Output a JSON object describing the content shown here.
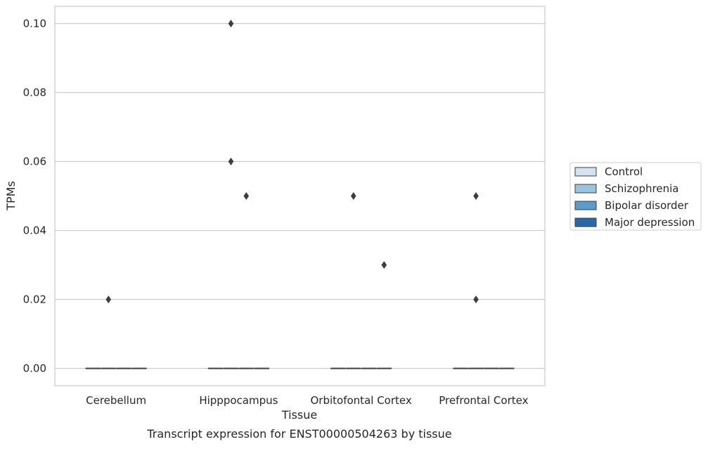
{
  "chart_data": {
    "type": "box",
    "title": "",
    "caption": "Transcript expression for ENST00000504263 by tissue",
    "xlabel": "Tissue",
    "ylabel": "TPMs",
    "ylim": [
      -0.005,
      0.105
    ],
    "yticks": [
      "0.00",
      "0.02",
      "0.04",
      "0.06",
      "0.08",
      "0.10"
    ],
    "ytick_values": [
      0.0,
      0.02,
      0.04,
      0.06,
      0.08,
      0.1
    ],
    "grid": "horizontal",
    "legend_position": "right",
    "categories": [
      "Cerebellum",
      "Hipppocampus",
      "Orbitofontal Cortex",
      "Prefrontal Cortex"
    ],
    "series": [
      {
        "name": "Control",
        "color": "#d4e3f1",
        "boxes": [
          {
            "median": 0.0,
            "q1": 0.0,
            "q3": 0.0,
            "whisker_low": 0.0,
            "whisker_high": 0.0,
            "outliers": []
          },
          {
            "median": 0.0,
            "q1": 0.0,
            "q3": 0.0,
            "whisker_low": 0.0,
            "whisker_high": 0.0,
            "outliers": []
          },
          {
            "median": 0.0,
            "q1": 0.0,
            "q3": 0.0,
            "whisker_low": 0.0,
            "whisker_high": 0.0,
            "outliers": []
          },
          {
            "median": 0.0,
            "q1": 0.0,
            "q3": 0.0,
            "whisker_low": 0.0,
            "whisker_high": 0.0,
            "outliers": []
          }
        ]
      },
      {
        "name": "Schizophrenia",
        "color": "#9ac3dd",
        "boxes": [
          {
            "median": 0.0,
            "q1": 0.0,
            "q3": 0.0,
            "whisker_low": 0.0,
            "whisker_high": 0.0,
            "outliers": [
              0.02
            ]
          },
          {
            "median": 0.0,
            "q1": 0.0,
            "q3": 0.0,
            "whisker_low": 0.0,
            "whisker_high": 0.0,
            "outliers": [
              0.1,
              0.06
            ]
          },
          {
            "median": 0.0,
            "q1": 0.0,
            "q3": 0.0,
            "whisker_low": 0.0,
            "whisker_high": 0.0,
            "outliers": [
              0.05
            ]
          },
          {
            "median": 0.0,
            "q1": 0.0,
            "q3": 0.0,
            "whisker_low": 0.0,
            "whisker_high": 0.0,
            "outliers": [
              0.05,
              0.02
            ]
          }
        ]
      },
      {
        "name": "Bipolar disorder",
        "color": "#5a9ccb",
        "boxes": [
          {
            "median": 0.0,
            "q1": 0.0,
            "q3": 0.0,
            "whisker_low": 0.0,
            "whisker_high": 0.0,
            "outliers": []
          },
          {
            "median": 0.0,
            "q1": 0.0,
            "q3": 0.0,
            "whisker_low": 0.0,
            "whisker_high": 0.0,
            "outliers": [
              0.05
            ]
          },
          {
            "median": 0.0,
            "q1": 0.0,
            "q3": 0.0,
            "whisker_low": 0.0,
            "whisker_high": 0.0,
            "outliers": []
          },
          {
            "median": 0.0,
            "q1": 0.0,
            "q3": 0.0,
            "whisker_low": 0.0,
            "whisker_high": 0.0,
            "outliers": []
          }
        ]
      },
      {
        "name": "Major depression",
        "color": "#2769a8",
        "boxes": [
          {
            "median": 0.0,
            "q1": 0.0,
            "q3": 0.0,
            "whisker_low": 0.0,
            "whisker_high": 0.0,
            "outliers": []
          },
          {
            "median": 0.0,
            "q1": 0.0,
            "q3": 0.0,
            "whisker_low": 0.0,
            "whisker_high": 0.0,
            "outliers": []
          },
          {
            "median": 0.0,
            "q1": 0.0,
            "q3": 0.0,
            "whisker_low": 0.0,
            "whisker_high": 0.0,
            "outliers": [
              0.03
            ]
          },
          {
            "median": 0.0,
            "q1": 0.0,
            "q3": 0.0,
            "whisker_low": 0.0,
            "whisker_high": 0.0,
            "outliers": []
          }
        ]
      }
    ]
  }
}
